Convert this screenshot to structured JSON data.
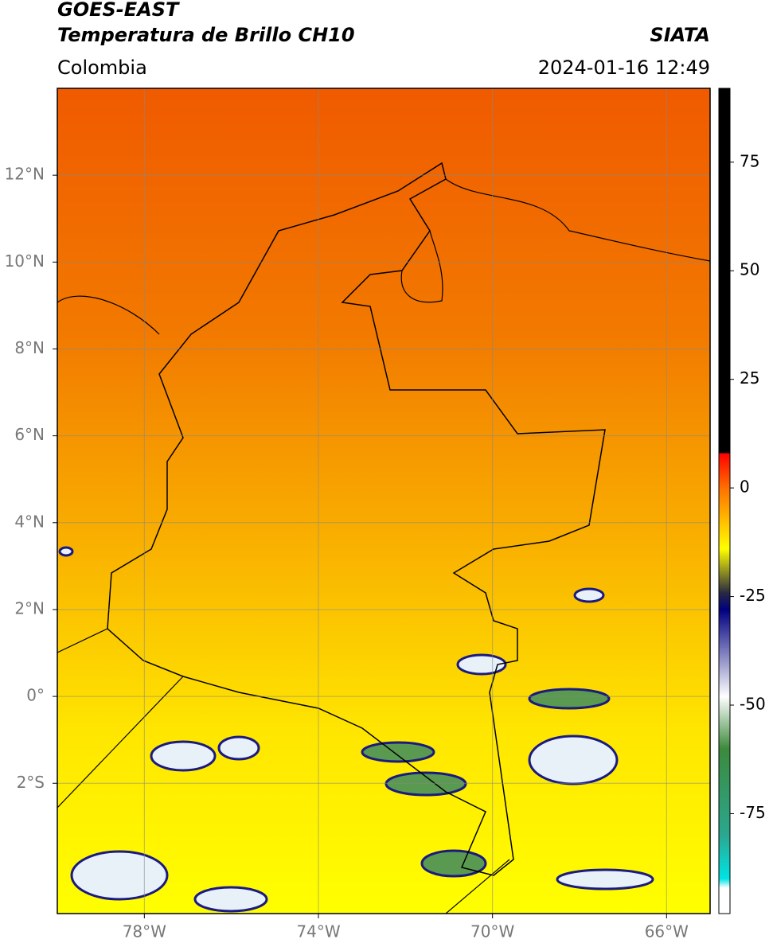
{
  "chart_data": {
    "type": "map",
    "title": "GOES-EAST",
    "subtitle": "Temperatura de Brillo CH10",
    "source": "SIATA",
    "region": "Colombia",
    "timestamp": "2024-01-16 12:49",
    "xlim": [
      -80,
      -65
    ],
    "ylim": [
      -5,
      14
    ],
    "xticks": [
      {
        "value": -78,
        "label": "78°W"
      },
      {
        "value": -74,
        "label": "74°W"
      },
      {
        "value": -70,
        "label": "70°W"
      },
      {
        "value": -66,
        "label": "66°W"
      }
    ],
    "yticks": [
      {
        "value": 12,
        "label": "12°N"
      },
      {
        "value": 10,
        "label": "10°N"
      },
      {
        "value": 8,
        "label": "8°N"
      },
      {
        "value": 6,
        "label": "6°N"
      },
      {
        "value": 4,
        "label": "4°N"
      },
      {
        "value": 2,
        "label": "2°N"
      },
      {
        "value": 0,
        "label": "0°"
      },
      {
        "value": -2,
        "label": "2°S"
      }
    ],
    "grid": true,
    "colorbar": {
      "lim": [
        -98,
        92
      ],
      "ticks": [
        75,
        50,
        25,
        0,
        -25,
        -50,
        -75
      ],
      "stops": [
        {
          "value": 92,
          "color": "#000000"
        },
        {
          "value": 8,
          "color": "#000000"
        },
        {
          "value": 8,
          "color": "#ff0000"
        },
        {
          "value": 0,
          "color": "#ff7000"
        },
        {
          "value": -14,
          "color": "#ffff00"
        },
        {
          "value": -24,
          "color": "#2a2a40"
        },
        {
          "value": -28,
          "color": "#000080"
        },
        {
          "value": -48,
          "color": "#ffffff"
        },
        {
          "value": -60,
          "color": "#3c8a3c"
        },
        {
          "value": -80,
          "color": "#2aa890"
        },
        {
          "value": -90,
          "color": "#00e5e5"
        },
        {
          "value": -92,
          "color": "#ffffff"
        },
        {
          "value": -98,
          "color": "#ffffff"
        }
      ]
    }
  }
}
